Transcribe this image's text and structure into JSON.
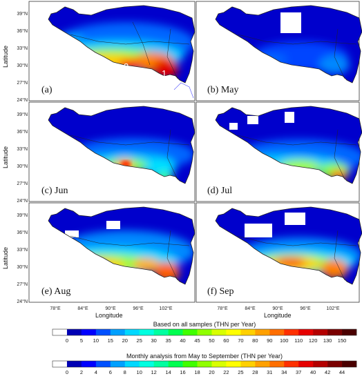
{
  "chart_data": {
    "type": "heatmap",
    "axes": {
      "ylabel": "Latitude",
      "xlabel": "Longitude",
      "lat_ticks": [
        "39°N",
        "36°N",
        "33°N",
        "30°N",
        "27°N",
        "24°N"
      ],
      "lon_ticks": [
        "78°E",
        "84°E",
        "90°E",
        "96°E",
        "102°E"
      ]
    },
    "panels": [
      {
        "label": "(a)",
        "region_numbers": [
          "3",
          "2",
          "1"
        ]
      },
      {
        "label": "(b) May"
      },
      {
        "label": "(c) Jun"
      },
      {
        "label": "(d) Jul"
      },
      {
        "label": "(e) Aug"
      },
      {
        "label": "(f) Sep"
      }
    ],
    "colorbars": [
      {
        "title": "Based on all samples (THN per Year)",
        "ticks": [
          "0",
          "5",
          "10",
          "15",
          "20",
          "25",
          "30",
          "35",
          "40",
          "45",
          "50",
          "60",
          "70",
          "80",
          "90",
          "100",
          "110",
          "120",
          "130",
          "150"
        ],
        "colors": [
          "#ffffff",
          "#0000b4",
          "#0000ff",
          "#0050ff",
          "#00a0ff",
          "#00d8ff",
          "#00ffe0",
          "#00ffa0",
          "#00ff50",
          "#40ff00",
          "#90ff00",
          "#d8ff00",
          "#ffff00",
          "#ffd000",
          "#ffa000",
          "#ff6e00",
          "#ff3000",
          "#e60000",
          "#b40000",
          "#7a0000",
          "#4a0000"
        ]
      },
      {
        "title": "Monthly analysis from May to September (THN per Year)",
        "ticks": [
          "0",
          "2",
          "4",
          "6",
          "8",
          "10",
          "12",
          "14",
          "16",
          "18",
          "20",
          "22",
          "25",
          "28",
          "31",
          "34",
          "37",
          "40",
          "42",
          "44"
        ],
        "colors": [
          "#ffffff",
          "#0000b4",
          "#0000ff",
          "#0050ff",
          "#00a0ff",
          "#00d8ff",
          "#00ffe0",
          "#00ffa0",
          "#00ff50",
          "#40ff00",
          "#90ff00",
          "#d8ff00",
          "#ffff00",
          "#ffd000",
          "#ffa000",
          "#ff6e00",
          "#ff3000",
          "#e60000",
          "#b40000",
          "#7a0000",
          "#4a0000"
        ]
      }
    ]
  }
}
